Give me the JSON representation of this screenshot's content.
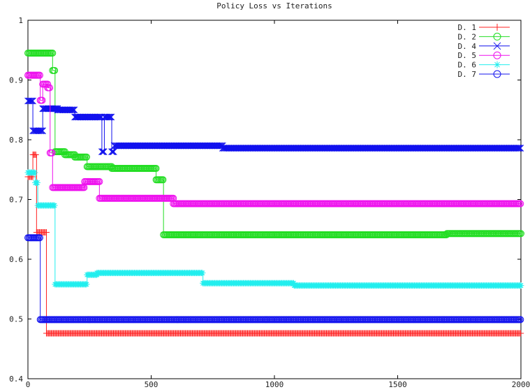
{
  "chart_data": {
    "type": "line",
    "title": "Policy Loss vs Iterations",
    "xlabel": "",
    "ylabel": "",
    "xlim": [
      0,
      2000
    ],
    "ylim": [
      0.4,
      1.0
    ],
    "xticks": [
      "0",
      "500",
      "1000",
      "1500",
      "2000"
    ],
    "yticks": [
      "0.4",
      "0.5",
      "0.6",
      "0.7",
      "0.8",
      "0.9",
      "1"
    ],
    "grid": false,
    "legend_position": "top-right",
    "series": [
      {
        "name": "D. 1",
        "color": "#ff2020",
        "marker": "plus",
        "points": [
          [
            0,
            0.738
          ],
          [
            20,
            0.738
          ],
          [
            20,
            0.775
          ],
          [
            35,
            0.775
          ],
          [
            35,
            0.645
          ],
          [
            75,
            0.645
          ],
          [
            75,
            0.476
          ],
          [
            2000,
            0.476
          ]
        ]
      },
      {
        "name": "D. 2",
        "color": "#22dd22",
        "marker": "circle",
        "points": [
          [
            0,
            0.945
          ],
          [
            100,
            0.945
          ],
          [
            100,
            0.916
          ],
          [
            110,
            0.916
          ],
          [
            110,
            0.78
          ],
          [
            150,
            0.78
          ],
          [
            150,
            0.775
          ],
          [
            190,
            0.775
          ],
          [
            190,
            0.771
          ],
          [
            240,
            0.771
          ],
          [
            240,
            0.755
          ],
          [
            340,
            0.755
          ],
          [
            340,
            0.752
          ],
          [
            520,
            0.752
          ],
          [
            520,
            0.733
          ],
          [
            550,
            0.733
          ],
          [
            550,
            0.641
          ],
          [
            1700,
            0.641
          ],
          [
            1700,
            0.643
          ],
          [
            2000,
            0.643
          ]
        ]
      },
      {
        "name": "D. 4",
        "color": "#1010ee",
        "marker": "cross",
        "points": [
          [
            0,
            0.865
          ],
          [
            20,
            0.865
          ],
          [
            20,
            0.815
          ],
          [
            60,
            0.815
          ],
          [
            60,
            0.852
          ],
          [
            120,
            0.852
          ],
          [
            120,
            0.85
          ],
          [
            190,
            0.85
          ],
          [
            190,
            0.838
          ],
          [
            300,
            0.838
          ],
          [
            300,
            0.78
          ],
          [
            310,
            0.78
          ],
          [
            310,
            0.838
          ],
          [
            340,
            0.838
          ],
          [
            340,
            0.78
          ],
          [
            350,
            0.78
          ],
          [
            350,
            0.79
          ],
          [
            790,
            0.79
          ],
          [
            790,
            0.786
          ],
          [
            2000,
            0.786
          ]
        ]
      },
      {
        "name": "D. 5",
        "color": "#ee11ee",
        "marker": "circle",
        "points": [
          [
            0,
            0.908
          ],
          [
            50,
            0.908
          ],
          [
            50,
            0.866
          ],
          [
            60,
            0.866
          ],
          [
            60,
            0.893
          ],
          [
            80,
            0.893
          ],
          [
            80,
            0.887
          ],
          [
            90,
            0.887
          ],
          [
            90,
            0.778
          ],
          [
            100,
            0.778
          ],
          [
            100,
            0.72
          ],
          [
            230,
            0.72
          ],
          [
            230,
            0.73
          ],
          [
            290,
            0.73
          ],
          [
            290,
            0.702
          ],
          [
            590,
            0.702
          ],
          [
            590,
            0.693
          ],
          [
            2000,
            0.693
          ]
        ]
      },
      {
        "name": "D. 6",
        "color": "#22eeee",
        "marker": "star",
        "points": [
          [
            0,
            0.745
          ],
          [
            30,
            0.745
          ],
          [
            30,
            0.728
          ],
          [
            40,
            0.728
          ],
          [
            40,
            0.69
          ],
          [
            110,
            0.69
          ],
          [
            110,
            0.558
          ],
          [
            240,
            0.558
          ],
          [
            240,
            0.574
          ],
          [
            280,
            0.574
          ],
          [
            280,
            0.577
          ],
          [
            710,
            0.577
          ],
          [
            710,
            0.56
          ],
          [
            1080,
            0.56
          ],
          [
            1080,
            0.556
          ],
          [
            2000,
            0.556
          ]
        ]
      },
      {
        "name": "D. 7",
        "color": "#1515ee",
        "marker": "circle",
        "points": [
          [
            0,
            0.636
          ],
          [
            50,
            0.636
          ],
          [
            50,
            0.499
          ],
          [
            2000,
            0.499
          ]
        ]
      }
    ]
  }
}
